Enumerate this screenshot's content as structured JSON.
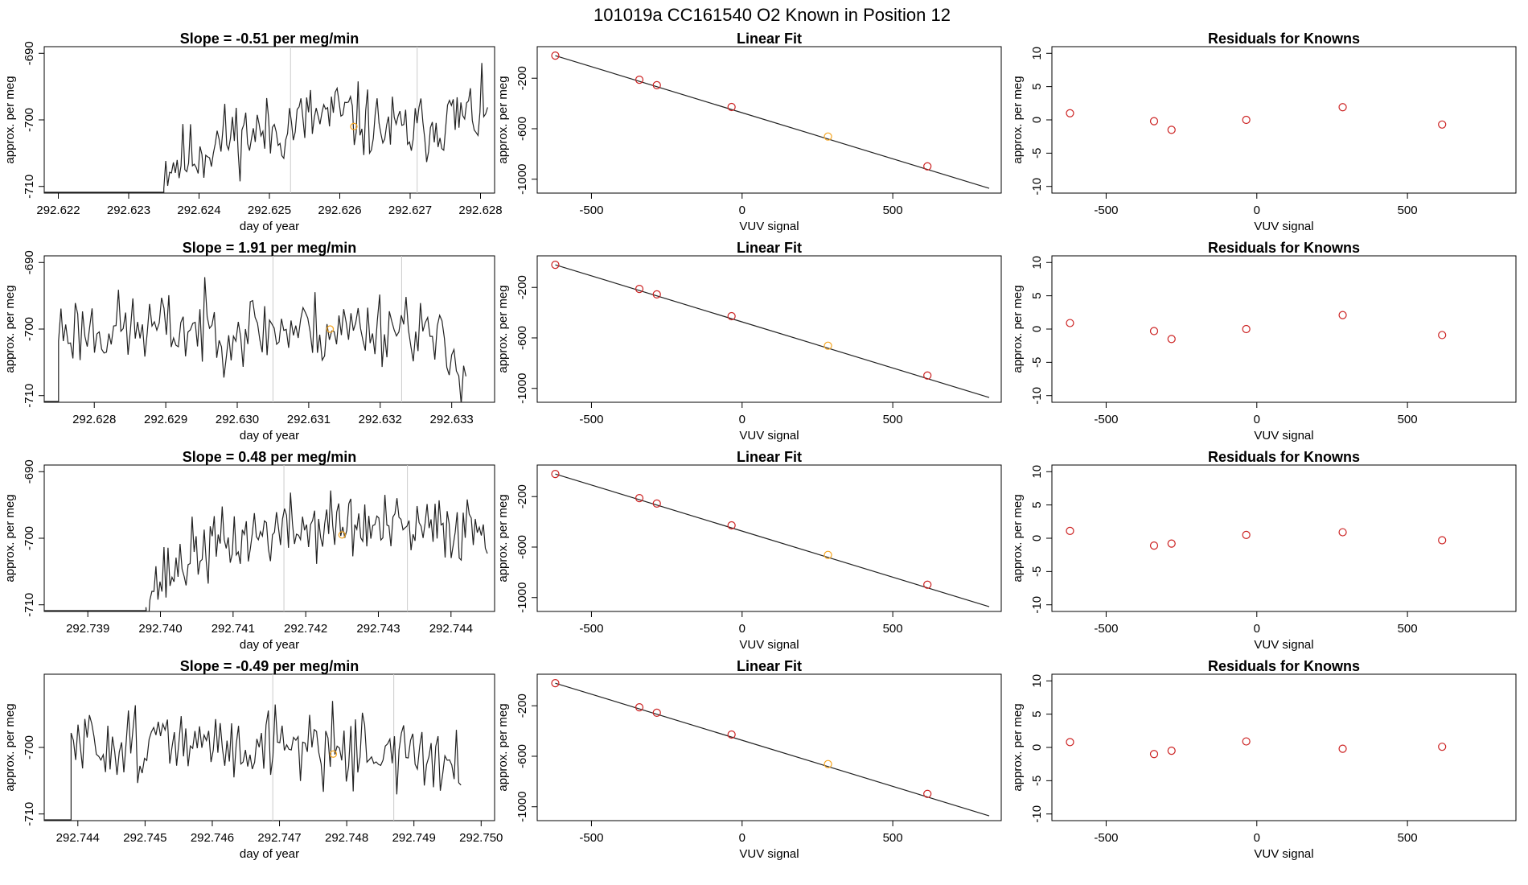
{
  "header": {
    "title": "101019a      CC161540    O2 Known in Position  12"
  },
  "colors": {
    "trace": "#222222",
    "vline": "#cccccc",
    "point_red": "#cc2222",
    "point_orange": "#f5a623",
    "fit_line": "#222222"
  },
  "chart_data": [
    {
      "type": "line",
      "title": "Slope =  -0.51  per meg/min",
      "xlabel": "day of year",
      "ylabel": "approx. per meg",
      "xlim": [
        292.6218,
        292.6282
      ],
      "ylim": [
        -711,
        -689
      ],
      "xticks": [
        "292.622",
        "292.623",
        "292.624",
        "292.625",
        "292.626",
        "292.627",
        "292.628"
      ],
      "yticks": [
        "-690",
        "-700",
        "-710"
      ],
      "vlines": [
        292.6253,
        292.6271
      ],
      "start": 292.6235,
      "end": 292.6281,
      "seed": 11,
      "base": -701,
      "amp": 3.3,
      "marker": {
        "x": 292.6262,
        "y": -701
      },
      "x": [
        292.6235,
        292.624,
        292.6245,
        292.625,
        292.6255,
        292.626,
        292.6265,
        292.627,
        292.6275,
        292.628
      ],
      "y": [
        -707,
        -705,
        -702,
        -702,
        -700,
        -699,
        -701,
        -702,
        -700,
        -699
      ]
    },
    {
      "type": "scatter",
      "title": "Linear Fit",
      "xlabel": "VUV signal",
      "ylabel": "approx. per meg",
      "xlim": [
        -680,
        860
      ],
      "ylim": [
        -1110,
        50
      ],
      "xticks": [
        "-500",
        "0",
        "500"
      ],
      "yticks": [
        "-200",
        "-600",
        "-1000"
      ],
      "x": [
        -620,
        -341,
        -283,
        -35,
        285,
        615
      ],
      "y": [
        -21,
        -212,
        -255,
        -428,
        -662,
        -898
      ],
      "orange": [
        4
      ],
      "fit": {
        "x": [
          -620,
          820
        ],
        "y": [
          -21,
          -1072
        ]
      }
    },
    {
      "type": "scatter",
      "title": "Residuals for Knowns",
      "xlabel": "VUV signal",
      "ylabel": "approx. per meg",
      "xlim": [
        -680,
        860
      ],
      "ylim": [
        -11,
        11
      ],
      "xticks": [
        "-500",
        "0",
        "500"
      ],
      "yticks": [
        "10",
        "5",
        "0",
        "-5",
        "-10"
      ],
      "x": [
        -620,
        -341,
        -283,
        -35,
        285,
        615
      ],
      "y": [
        1.0,
        -0.2,
        -1.5,
        0.0,
        1.9,
        -0.7
      ]
    },
    {
      "type": "line",
      "title": "Slope =  1.91  per meg/min",
      "xlabel": "day of year",
      "ylabel": "approx. per meg",
      "xlim": [
        292.6273,
        292.6336
      ],
      "ylim": [
        -711,
        -689
      ],
      "xticks": [
        "292.628",
        "292.629",
        "292.630",
        "292.631",
        "292.632",
        "292.633"
      ],
      "yticks": [
        "-690",
        "-700",
        "-710"
      ],
      "vlines": [
        292.6305,
        292.6323
      ],
      "start": 292.6275,
      "end": 292.6332,
      "seed": 23,
      "base": -700,
      "amp": 3.5,
      "marker": {
        "x": 292.6313,
        "y": -700
      },
      "x": [
        292.6275,
        292.6285,
        292.6295,
        292.6305,
        292.6315,
        292.6325,
        292.633
      ],
      "y": [
        -700,
        -700,
        -700,
        -700,
        -700,
        -699,
        -705
      ]
    },
    {
      "type": "scatter",
      "title": "Linear Fit",
      "xlabel": "VUV signal",
      "ylabel": "approx. per meg",
      "xlim": [
        -680,
        860
      ],
      "ylim": [
        -1110,
        50
      ],
      "xticks": [
        "-500",
        "0",
        "500"
      ],
      "yticks": [
        "-200",
        "-600",
        "-1000"
      ],
      "x": [
        -620,
        -341,
        -283,
        -35,
        285,
        615
      ],
      "y": [
        -21,
        -212,
        -255,
        -428,
        -662,
        -898
      ],
      "orange": [
        4
      ],
      "fit": {
        "x": [
          -620,
          820
        ],
        "y": [
          -21,
          -1072
        ]
      }
    },
    {
      "type": "scatter",
      "title": "Residuals for Knowns",
      "xlabel": "VUV signal",
      "ylabel": "approx. per meg",
      "xlim": [
        -680,
        860
      ],
      "ylim": [
        -11,
        11
      ],
      "xticks": [
        "-500",
        "0",
        "500"
      ],
      "yticks": [
        "10",
        "5",
        "0",
        "-5",
        "-10"
      ],
      "x": [
        -620,
        -341,
        -283,
        -35,
        285,
        615
      ],
      "y": [
        0.9,
        -0.3,
        -1.5,
        0.0,
        2.1,
        -0.9
      ]
    },
    {
      "type": "line",
      "title": "Slope =  0.48  per meg/min",
      "xlabel": "day of year",
      "ylabel": "approx. per meg",
      "xlim": [
        292.7384,
        292.7446
      ],
      "ylim": [
        -711,
        -689
      ],
      "xticks": [
        "292.739",
        "292.740",
        "292.741",
        "292.742",
        "292.743",
        "292.744"
      ],
      "yticks": [
        "-690",
        "-700",
        "-710"
      ],
      "vlines": [
        292.7417,
        292.7434
      ],
      "start": 292.7398,
      "end": 292.7445,
      "seed": 37,
      "base": -700,
      "amp": 3.2,
      "marker": {
        "x": 292.7425,
        "y": -699.5
      },
      "x": [
        292.7398,
        292.7405,
        292.7415,
        292.7425,
        292.7435,
        292.7445
      ],
      "y": [
        -708,
        -702,
        -699,
        -698,
        -699,
        -698
      ]
    },
    {
      "type": "scatter",
      "title": "Linear Fit",
      "xlabel": "VUV signal",
      "ylabel": "approx. per meg",
      "xlim": [
        -680,
        860
      ],
      "ylim": [
        -1110,
        50
      ],
      "xticks": [
        "-500",
        "0",
        "500"
      ],
      "yticks": [
        "-200",
        "-600",
        "-1000"
      ],
      "x": [
        -620,
        -341,
        -283,
        -35,
        285,
        615
      ],
      "y": [
        -21,
        -212,
        -255,
        -428,
        -662,
        -898
      ],
      "orange": [
        4
      ],
      "fit": {
        "x": [
          -620,
          820
        ],
        "y": [
          -21,
          -1072
        ]
      }
    },
    {
      "type": "scatter",
      "title": "Residuals for Knowns",
      "xlabel": "VUV signal",
      "ylabel": "approx. per meg",
      "xlim": [
        -680,
        860
      ],
      "ylim": [
        -11,
        11
      ],
      "xticks": [
        "-500",
        "0",
        "500"
      ],
      "yticks": [
        "10",
        "5",
        "0",
        "-5",
        "-10"
      ],
      "x": [
        -620,
        -341,
        -283,
        -35,
        285,
        615
      ],
      "y": [
        1.1,
        -1.1,
        -0.8,
        0.5,
        0.9,
        -0.3
      ]
    },
    {
      "type": "line",
      "title": "Slope =  -0.49  per meg/min",
      "xlabel": "day of year",
      "ylabel": "approx. per meg",
      "xlim": [
        292.7435,
        292.7502
      ],
      "ylim": [
        -711,
        -689
      ],
      "xticks": [
        "292.744",
        "292.745",
        "292.746",
        "292.747",
        "292.748",
        "292.749",
        "292.750"
      ],
      "yticks": [
        "-700",
        "-710"
      ],
      "vlines": [
        292.7469,
        292.7487
      ],
      "start": 292.7439,
      "end": 292.7497,
      "seed": 51,
      "base": -699,
      "amp": 3.4,
      "marker": {
        "x": 292.7478,
        "y": -701
      },
      "x": [
        292.7439,
        292.745,
        292.746,
        292.747,
        292.748,
        292.749,
        292.7497
      ],
      "y": [
        -700,
        -699,
        -700,
        -699,
        -700,
        -701,
        -704
      ]
    },
    {
      "type": "scatter",
      "title": "Linear Fit",
      "xlabel": "VUV signal",
      "ylabel": "approx. per meg",
      "xlim": [
        -680,
        860
      ],
      "ylim": [
        -1110,
        50
      ],
      "xticks": [
        "-500",
        "0",
        "500"
      ],
      "yticks": [
        "-200",
        "-600",
        "-1000"
      ],
      "x": [
        -620,
        -341,
        -283,
        -35,
        285,
        615
      ],
      "y": [
        -21,
        -212,
        -255,
        -428,
        -662,
        -898
      ],
      "orange": [
        4
      ],
      "fit": {
        "x": [
          -620,
          820
        ],
        "y": [
          -21,
          -1072
        ]
      }
    },
    {
      "type": "scatter",
      "title": "Residuals for Knowns",
      "xlabel": "VUV signal",
      "ylabel": "approx. per meg",
      "xlim": [
        -680,
        860
      ],
      "ylim": [
        -11,
        11
      ],
      "xticks": [
        "-500",
        "0",
        "500"
      ],
      "yticks": [
        "10",
        "5",
        "0",
        "-5",
        "-10"
      ],
      "x": [
        -620,
        -341,
        -283,
        -35,
        285,
        615
      ],
      "y": [
        0.8,
        -1.0,
        -0.5,
        0.9,
        -0.2,
        0.1
      ]
    }
  ]
}
